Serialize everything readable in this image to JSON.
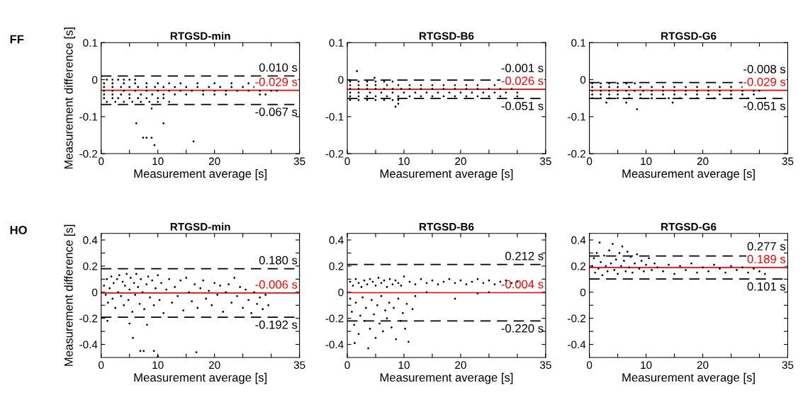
{
  "chart_data": [
    {
      "type": "scatter",
      "title": "RTGSD-min",
      "xlabel": "Measurement average [s]",
      "ylabel": "Measurement difference [s]",
      "annotations": [
        "FF"
      ],
      "marker": "circle",
      "xlim": [
        0,
        35
      ],
      "xticks": [
        0,
        {
          "value": 5,
          "label": null
        },
        10,
        {
          "value": 15,
          "label": null
        },
        20,
        {
          "value": 25,
          "label": null
        },
        {
          "value": 30,
          "label": null
        },
        35
      ],
      "ylim": [
        -0.2,
        0.1
      ],
      "yticks": [
        -0.2,
        -0.1,
        0,
        0.1
      ],
      "ref_lines": [
        {
          "axis": "y",
          "value": 0.01,
          "label": "0.010 s",
          "color": "#000000",
          "line_style": "dashed"
        },
        {
          "axis": "y",
          "value": -0.029,
          "label": "-0.029 s",
          "color": "#ff0000",
          "line_style": "solid"
        },
        {
          "axis": "y",
          "value": -0.067,
          "label": "-0.067 s",
          "color": "#000000",
          "line_style": "dashed"
        }
      ],
      "series": [
        {
          "color": "#000000",
          "x": [
            1,
            2,
            3,
            4,
            5,
            6,
            0.5,
            2,
            4,
            6,
            8,
            10,
            12,
            14,
            17,
            20,
            23,
            26,
            0.5,
            2,
            3.5,
            5,
            6.5,
            8,
            9.5,
            11,
            13,
            15,
            17,
            19,
            21,
            23,
            25,
            27,
            0.5,
            2,
            4,
            6,
            8,
            10,
            12,
            14,
            16,
            18,
            20,
            22,
            24,
            26,
            28,
            30,
            31,
            0.5,
            2,
            3.5,
            5,
            7,
            9,
            11,
            13,
            15,
            18,
            20,
            22,
            28,
            29,
            0.5,
            2,
            3,
            5,
            6.5,
            8,
            10,
            11,
            1,
            2.5,
            4,
            5.5,
            7,
            8.5,
            10,
            12,
            8.9,
            6.2,
            11,
            7.4,
            8,
            8.9,
            9.4,
            16.3
          ],
          "values": [
            0,
            0,
            0,
            0,
            0,
            0,
            -0.01,
            -0.01,
            -0.01,
            -0.01,
            -0.01,
            -0.01,
            -0.01,
            -0.01,
            -0.01,
            -0.01,
            -0.01,
            -0.01,
            -0.02,
            -0.02,
            -0.02,
            -0.02,
            -0.02,
            -0.02,
            -0.02,
            -0.02,
            -0.02,
            -0.02,
            -0.02,
            -0.02,
            -0.02,
            -0.02,
            -0.02,
            -0.02,
            -0.03,
            -0.03,
            -0.03,
            -0.03,
            -0.03,
            -0.03,
            -0.03,
            -0.03,
            -0.03,
            -0.03,
            -0.03,
            -0.03,
            -0.03,
            -0.03,
            -0.03,
            -0.03,
            -0.03,
            -0.04,
            -0.04,
            -0.04,
            -0.04,
            -0.04,
            -0.04,
            -0.04,
            -0.04,
            -0.04,
            -0.04,
            -0.04,
            -0.04,
            -0.04,
            -0.04,
            -0.05,
            -0.05,
            -0.05,
            -0.05,
            -0.05,
            -0.05,
            -0.05,
            -0.05,
            -0.06,
            -0.06,
            -0.06,
            -0.06,
            -0.06,
            -0.06,
            -0.06,
            -0.06,
            -0.078,
            -0.118,
            -0.118,
            -0.157,
            -0.157,
            -0.157,
            -0.177,
            -0.167
          ]
        }
      ]
    },
    {
      "type": "scatter",
      "title": "RTGSD-B6",
      "xlabel": "Measurement average [s]",
      "marker": "circle",
      "xlim": [
        0,
        35
      ],
      "xticks": [
        0,
        {
          "value": 5,
          "label": null
        },
        10,
        {
          "value": 15,
          "label": null
        },
        20,
        {
          "value": 25,
          "label": null
        },
        {
          "value": 30,
          "label": null
        },
        35
      ],
      "ylim": [
        -0.2,
        0.1
      ],
      "yticks": [
        -0.2,
        -0.1,
        0,
        0.1
      ],
      "ref_lines": [
        {
          "axis": "y",
          "value": -0.001,
          "label": "-0.001 s",
          "color": "#000000",
          "line_style": "dashed"
        },
        {
          "axis": "y",
          "value": -0.026,
          "label": "-0.026 s",
          "color": "#ff0000",
          "line_style": "solid"
        },
        {
          "axis": "y",
          "value": -0.051,
          "label": "-0.051 s",
          "color": "#000000",
          "line_style": "dashed"
        }
      ],
      "series": [
        {
          "color": "#000000",
          "x": [
            0.5,
            2,
            3.5,
            5,
            6.5,
            8,
            0.5,
            2,
            3.5,
            5,
            7,
            9,
            11,
            13,
            15,
            17,
            19,
            21,
            23,
            26,
            0.5,
            2,
            3.5,
            5,
            6.5,
            8,
            9.5,
            11,
            13,
            15,
            17,
            19,
            21,
            23,
            25,
            27,
            29,
            0.5,
            2,
            4,
            6,
            8,
            10,
            12,
            14,
            16,
            18,
            20,
            22,
            24,
            26,
            28,
            30,
            0.5,
            2,
            3.5,
            5,
            7,
            9,
            11,
            13,
            15,
            17,
            19,
            21,
            23,
            25,
            27,
            30,
            0.5,
            2,
            3.5,
            5,
            6.5,
            8,
            9,
            1.7,
            4.8,
            8.5,
            9
          ],
          "values": [
            -0.005,
            -0.005,
            -0.005,
            -0.005,
            -0.005,
            -0.005,
            -0.015,
            -0.015,
            -0.015,
            -0.015,
            -0.015,
            -0.015,
            -0.015,
            -0.015,
            -0.015,
            -0.015,
            -0.015,
            -0.015,
            -0.015,
            -0.015,
            -0.025,
            -0.025,
            -0.025,
            -0.025,
            -0.025,
            -0.025,
            -0.025,
            -0.025,
            -0.025,
            -0.025,
            -0.025,
            -0.025,
            -0.025,
            -0.025,
            -0.025,
            -0.025,
            -0.025,
            -0.035,
            -0.035,
            -0.035,
            -0.035,
            -0.035,
            -0.035,
            -0.035,
            -0.035,
            -0.035,
            -0.035,
            -0.035,
            -0.035,
            -0.035,
            -0.035,
            -0.035,
            -0.035,
            -0.045,
            -0.045,
            -0.045,
            -0.045,
            -0.045,
            -0.045,
            -0.045,
            -0.045,
            -0.045,
            -0.045,
            -0.045,
            -0.045,
            -0.045,
            -0.045,
            -0.045,
            -0.045,
            -0.055,
            -0.055,
            -0.055,
            -0.055,
            -0.055,
            -0.055,
            -0.055,
            0.023,
            0.005,
            -0.073,
            -0.065
          ]
        }
      ]
    },
    {
      "type": "scatter",
      "title": "RTGSD-G6",
      "xlabel": "Measurement average [s]",
      "marker": "circle",
      "xlim": [
        0,
        35
      ],
      "xticks": [
        0,
        {
          "value": 5,
          "label": null
        },
        10,
        {
          "value": 15,
          "label": null
        },
        20,
        {
          "value": 25,
          "label": null
        },
        {
          "value": 30,
          "label": null
        },
        35
      ],
      "ylim": [
        -0.2,
        0.1
      ],
      "yticks": [
        -0.2,
        -0.1,
        0,
        0.1
      ],
      "ref_lines": [
        {
          "axis": "y",
          "value": -0.008,
          "label": "-0.008 s",
          "color": "#000000",
          "line_style": "dashed"
        },
        {
          "axis": "y",
          "value": -0.029,
          "label": "-0.029 s",
          "color": "#ff0000",
          "line_style": "solid"
        },
        {
          "axis": "y",
          "value": -0.051,
          "label": "-0.051 s",
          "color": "#000000",
          "line_style": "dashed"
        }
      ],
      "series": [
        {
          "color": "#000000",
          "x": [
            0.5,
            2,
            3.5,
            5,
            6.5,
            8,
            0.5,
            2,
            3.5,
            5,
            7,
            9,
            11,
            13,
            15,
            17,
            19,
            21,
            23,
            25,
            27,
            0.5,
            2,
            3.5,
            5,
            6.5,
            8,
            9.5,
            11,
            13,
            15,
            17,
            19,
            21,
            23,
            25,
            27,
            29,
            30,
            0.5,
            2,
            3.5,
            5,
            7,
            9,
            11,
            13,
            15,
            17,
            19,
            21,
            23,
            25,
            27,
            29,
            0.5,
            2,
            3.5,
            5,
            7,
            9,
            11,
            14,
            16,
            19,
            22,
            25,
            28,
            31,
            3,
            6.5,
            14.7,
            8.4
          ],
          "values": [
            -0.01,
            -0.01,
            -0.01,
            -0.01,
            -0.01,
            -0.01,
            -0.02,
            -0.02,
            -0.02,
            -0.02,
            -0.02,
            -0.02,
            -0.02,
            -0.02,
            -0.02,
            -0.02,
            -0.02,
            -0.02,
            -0.02,
            -0.02,
            -0.02,
            -0.03,
            -0.03,
            -0.03,
            -0.03,
            -0.03,
            -0.03,
            -0.03,
            -0.03,
            -0.03,
            -0.03,
            -0.03,
            -0.03,
            -0.03,
            -0.03,
            -0.03,
            -0.03,
            -0.03,
            -0.03,
            -0.04,
            -0.04,
            -0.04,
            -0.04,
            -0.04,
            -0.04,
            -0.04,
            -0.04,
            -0.04,
            -0.04,
            -0.04,
            -0.04,
            -0.04,
            -0.04,
            -0.04,
            -0.04,
            -0.05,
            -0.05,
            -0.05,
            -0.05,
            -0.05,
            -0.05,
            -0.05,
            -0.05,
            -0.05,
            -0.05,
            -0.05,
            -0.05,
            -0.05,
            -0.05,
            -0.062,
            -0.062,
            -0.062,
            -0.08
          ]
        }
      ]
    },
    {
      "type": "scatter",
      "title": "RTGSD-min",
      "xlabel": "Measurement average [s]",
      "ylabel": "Measurement difference [s]",
      "annotations": [
        "HO"
      ],
      "marker": "circle",
      "xlim": [
        0,
        35
      ],
      "xticks": [
        0,
        {
          "value": 5,
          "label": null
        },
        10,
        {
          "value": 15,
          "label": null
        },
        20,
        {
          "value": 25,
          "label": null
        },
        {
          "value": 30,
          "label": null
        },
        35
      ],
      "ylim": [
        -0.5,
        0.45
      ],
      "yticks": [
        -0.4,
        {
          "value": -0.3,
          "label": null
        },
        -0.2,
        {
          "value": -0.1,
          "label": null
        },
        0,
        {
          "value": 0.1,
          "label": null
        },
        0.2,
        {
          "value": 0.3,
          "label": null
        },
        0.4
      ],
      "ref_lines": [
        {
          "axis": "y",
          "value": 0.18,
          "label": "0.180 s",
          "color": "#000000",
          "line_style": "dashed"
        },
        {
          "axis": "y",
          "value": -0.006,
          "label": "-0.006 s",
          "color": "#ff0000",
          "line_style": "solid"
        },
        {
          "axis": "y",
          "value": -0.192,
          "label": "-0.192 s",
          "color": "#000000",
          "line_style": "dashed"
        }
      ],
      "series": [
        {
          "color": "#000000",
          "x": [
            0.5,
            0.8,
            1,
            1.2,
            1.5,
            1.8,
            2,
            2.2,
            2.5,
            2.8,
            3,
            3.2,
            3.5,
            3.8,
            4,
            4.2,
            4.5,
            4.8,
            5,
            5.2,
            5.5,
            5.8,
            6,
            6.2,
            6.5,
            6.8,
            7,
            7.3,
            7.6,
            8,
            8.3,
            8.6,
            9,
            9.3,
            9.6,
            10,
            10.3,
            10.6,
            11,
            11.5,
            12,
            12.5,
            13,
            13.5,
            14,
            14.5,
            15,
            15.5,
            16,
            16.5,
            17,
            17.5,
            18,
            18.5,
            19,
            19.5,
            20,
            20.5,
            21,
            21.5,
            22,
            22.5,
            23,
            23.5,
            24,
            24.5,
            25,
            25.5,
            26,
            26.5,
            27,
            27.5,
            28,
            28.5,
            29,
            29.5,
            1.1,
            5,
            8.1,
            5.6,
            6.9,
            7.5,
            9.3,
            10,
            16.8
          ],
          "values": [
            0.05,
            -0.02,
            0.1,
            -0.08,
            0.03,
            0.12,
            -0.05,
            0.07,
            -0.12,
            0.1,
            0,
            0.13,
            -0.03,
            0.08,
            -0.1,
            0.05,
            0.14,
            -0.06,
            0.02,
            0.11,
            -0.15,
            0.07,
            -0.02,
            0.14,
            0.04,
            -0.09,
            0.1,
            0,
            -0.13,
            0.06,
            0.12,
            -0.04,
            0.09,
            -0.1,
            0.03,
            0.13,
            -0.06,
            0.07,
            -0.16,
            0.02,
            0.1,
            -0.08,
            0.04,
            -0.03,
            0.09,
            -0.14,
            0.11,
            0,
            -0.07,
            0.06,
            -0.12,
            0.03,
            0.09,
            -0.05,
            0.01,
            -0.1,
            0.07,
            -0.02,
            0.05,
            -0.15,
            0,
            0.06,
            -0.08,
            0.11,
            -0.03,
            0.04,
            -0.12,
            0.02,
            -0.06,
            -0.16,
            0,
            -0.09,
            -0.04,
            -0.13,
            -0.02,
            -0.1,
            -0.22,
            -0.24,
            -0.25,
            -0.35,
            -0.45,
            -0.45,
            -0.45,
            -0.49,
            -0.46
          ]
        }
      ]
    },
    {
      "type": "scatter",
      "title": "RTGSD-B6",
      "xlabel": "Measurement average [s]",
      "marker": "circle",
      "xlim": [
        0,
        35
      ],
      "xticks": [
        0,
        {
          "value": 5,
          "label": null
        },
        10,
        {
          "value": 15,
          "label": null
        },
        20,
        {
          "value": 25,
          "label": null
        },
        {
          "value": 30,
          "label": null
        },
        35
      ],
      "ylim": [
        -0.5,
        0.45
      ],
      "yticks": [
        -0.4,
        {
          "value": -0.3,
          "label": null
        },
        -0.2,
        {
          "value": -0.1,
          "label": null
        },
        0,
        {
          "value": 0.1,
          "label": null
        },
        0.2,
        {
          "value": 0.3,
          "label": null
        },
        0.4
      ],
      "ref_lines": [
        {
          "axis": "y",
          "value": 0.212,
          "label": "0.212 s",
          "color": "#000000",
          "line_style": "dashed"
        },
        {
          "axis": "y",
          "value": -0.004,
          "label": "-0.004 s",
          "color": "#ff0000",
          "line_style": "solid"
        },
        {
          "axis": "y",
          "value": -0.22,
          "label": "-0.220 s",
          "color": "#000000",
          "line_style": "dashed"
        }
      ],
      "series": [
        {
          "color": "#000000",
          "x": [
            0.5,
            1,
            1.5,
            2,
            2.5,
            3,
            3.5,
            4,
            4.5,
            5,
            5.5,
            6,
            6.5,
            7,
            7.5,
            8,
            8.5,
            9,
            9.5,
            10,
            11,
            12,
            13,
            14,
            15,
            16,
            17,
            18,
            19,
            20,
            21,
            22,
            23,
            24,
            25,
            26,
            27,
            28,
            29,
            30,
            0.5,
            0.8,
            1.2,
            1.5,
            2,
            2.3,
            2.7,
            3,
            3.3,
            3.7,
            4,
            4.3,
            4.7,
            5,
            5.3,
            5.7,
            6,
            6.3,
            6.7,
            7,
            7.4,
            7.8,
            8.2,
            8.6,
            9,
            9.4,
            9.8,
            10.2,
            10.5,
            10.8,
            11.5,
            12,
            14,
            19,
            23,
            25,
            1.3
          ],
          "values": [
            0.08,
            0.05,
            0.1,
            0.07,
            0.04,
            0.09,
            0.06,
            0.1,
            0.08,
            0.05,
            0.11,
            0.07,
            0.09,
            0.04,
            0.1,
            0.06,
            0.09,
            0.07,
            0.05,
            0.12,
            0.08,
            0.06,
            0.1,
            0.07,
            0.09,
            0.06,
            0.08,
            0.1,
            0.07,
            0.09,
            0.06,
            0.08,
            0.1,
            0.07,
            0.09,
            0.06,
            0.08,
            0.09,
            0.07,
            0.08,
            -0.05,
            -0.15,
            -0.25,
            -0.08,
            -0.32,
            -0.18,
            -0.04,
            -0.22,
            -0.12,
            -0.43,
            -0.28,
            -0.06,
            -0.17,
            -0.35,
            -0.1,
            -0.24,
            -0.03,
            -0.3,
            -0.14,
            -0.2,
            -0.08,
            -0.27,
            -0.12,
            -0.36,
            -0.05,
            -0.22,
            -0.16,
            -0.28,
            -0.09,
            -0.38,
            -0.13,
            -0.03,
            0,
            -0.05,
            -0.01,
            0,
            -0.39
          ]
        }
      ]
    },
    {
      "type": "scatter",
      "title": "RTGSD-G6",
      "xlabel": "Measurement average [s]",
      "marker": "circle",
      "xlim": [
        0,
        35
      ],
      "xticks": [
        0,
        {
          "value": 5,
          "label": null
        },
        10,
        {
          "value": 15,
          "label": null
        },
        20,
        {
          "value": 25,
          "label": null
        },
        {
          "value": 30,
          "label": null
        },
        35
      ],
      "ylim": [
        -0.5,
        0.45
      ],
      "yticks": [
        -0.4,
        {
          "value": -0.3,
          "label": null
        },
        -0.2,
        {
          "value": -0.1,
          "label": null
        },
        0,
        {
          "value": 0.1,
          "label": null
        },
        0.2,
        {
          "value": 0.3,
          "label": null
        },
        0.4
      ],
      "ref_lines": [
        {
          "axis": "y",
          "value": 0.277,
          "label": "0.277 s",
          "color": "#000000",
          "line_style": "dashed"
        },
        {
          "axis": "y",
          "value": 0.189,
          "label": "0.189 s",
          "color": "#ff0000",
          "line_style": "solid"
        },
        {
          "axis": "y",
          "value": 0.101,
          "label": "0.101 s",
          "color": "#000000",
          "line_style": "dashed"
        }
      ],
      "series": [
        {
          "color": "#000000",
          "x": [
            0.5,
            0.8,
            1,
            1.3,
            1.6,
            1.8,
            2,
            2.3,
            2.6,
            2.9,
            3.2,
            3.5,
            3.8,
            4.1,
            4.4,
            4.7,
            5,
            5.3,
            5.6,
            5.8,
            6.1,
            6.4,
            6.7,
            7,
            7.3,
            7.6,
            8,
            8.4,
            8.8,
            9.2,
            9.6,
            10,
            10.5,
            11,
            11.5,
            12,
            13,
            14,
            15,
            16,
            17,
            18,
            19,
            20,
            21,
            22,
            23,
            24,
            25,
            26,
            27,
            28,
            29,
            30,
            31
          ],
          "values": [
            0.2,
            0.26,
            0.15,
            0.3,
            0.18,
            0.38,
            0.23,
            0.13,
            0.28,
            0.2,
            0.16,
            0.32,
            0.22,
            0.37,
            0.17,
            0.25,
            0.14,
            0.3,
            0.2,
            0.35,
            0.24,
            0.16,
            0.31,
            0.19,
            0.27,
            0.15,
            0.22,
            0.29,
            0.18,
            0.24,
            0.16,
            0.21,
            0.26,
            0.17,
            0.22,
            0.19,
            0.16,
            0.21,
            0.14,
            0.2,
            0.17,
            0.22,
            0.15,
            0.19,
            0.16,
            0.21,
            0.18,
            0.15,
            0.2,
            0.17,
            0.19,
            0.15,
            0.18,
            0.16,
            0.14
          ]
        }
      ]
    }
  ]
}
